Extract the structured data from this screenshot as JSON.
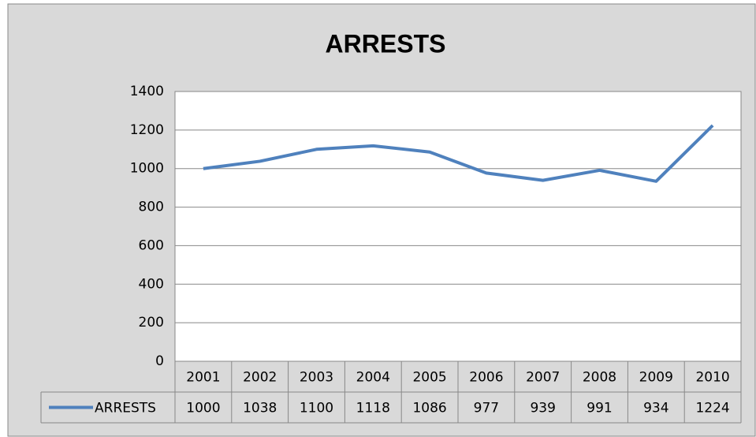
{
  "chart_data": {
    "type": "line",
    "title": "ARRESTS",
    "categories": [
      "2001",
      "2002",
      "2003",
      "2004",
      "2005",
      "2006",
      "2007",
      "2008",
      "2009",
      "2010"
    ],
    "series": [
      {
        "name": "ARRESTS",
        "color": "#4f81bd",
        "values": [
          1000,
          1038,
          1100,
          1118,
          1086,
          977,
          939,
          991,
          934,
          1224
        ]
      }
    ],
    "ylim": [
      0,
      1400
    ],
    "yticks": [
      0,
      200,
      400,
      600,
      800,
      1000,
      1200,
      1400
    ],
    "grid": true,
    "data_table": true
  }
}
